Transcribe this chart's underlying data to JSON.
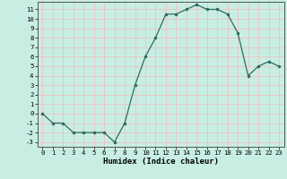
{
  "x": [
    0,
    1,
    2,
    3,
    4,
    5,
    6,
    7,
    8,
    9,
    10,
    11,
    12,
    13,
    14,
    15,
    16,
    17,
    18,
    19,
    20,
    21,
    22,
    23
  ],
  "y": [
    0,
    -1,
    -1,
    -2,
    -2,
    -2,
    -2,
    -3,
    -1,
    3,
    6,
    8,
    10.5,
    10.5,
    11,
    11.5,
    11,
    11,
    10.5,
    8.5,
    4,
    5,
    5.5,
    5
  ],
  "line_color": "#2e6b5e",
  "marker_color": "#2e6b5e",
  "bg_color": "#c8eee4",
  "grid_color_minor": "#f5b8b8",
  "grid_color_major": "#f5b8b8",
  "xlabel": "Humidex (Indice chaleur)",
  "xlim": [
    -0.5,
    23.5
  ],
  "ylim": [
    -3.5,
    11.8
  ],
  "yticks": [
    -3,
    -2,
    -1,
    0,
    1,
    2,
    3,
    4,
    5,
    6,
    7,
    8,
    9,
    10,
    11
  ],
  "xticks": [
    0,
    1,
    2,
    3,
    4,
    5,
    6,
    7,
    8,
    9,
    10,
    11,
    12,
    13,
    14,
    15,
    16,
    17,
    18,
    19,
    20,
    21,
    22,
    23
  ],
  "fontsize_label": 6.5,
  "fontsize_tick": 5.2
}
